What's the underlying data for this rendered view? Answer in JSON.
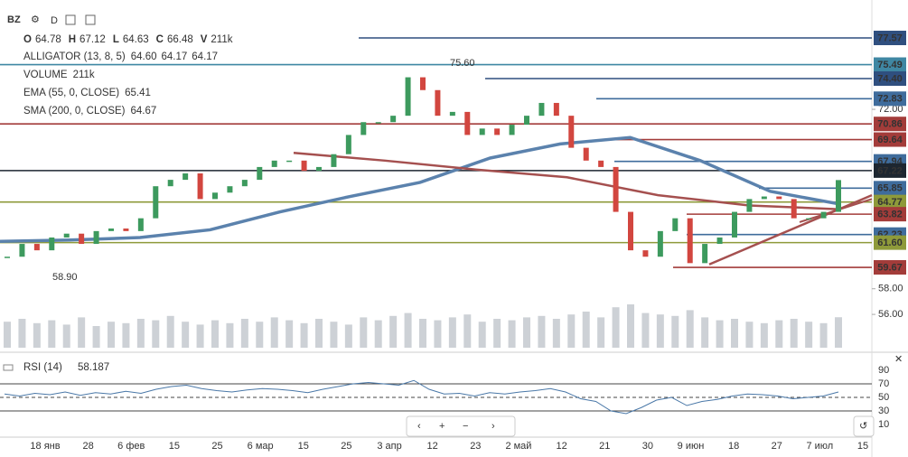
{
  "toolbar": {
    "symbol": "BZ",
    "interval": "D"
  },
  "legend": {
    "ohlc": [
      {
        "key": "O",
        "value": "64.78"
      },
      {
        "key": "H",
        "value": "67.12"
      },
      {
        "key": "L",
        "value": "64.63"
      },
      {
        "key": "C",
        "value": "66.48"
      },
      {
        "key": "V",
        "value": "211k"
      }
    ],
    "indicators": [
      {
        "name": "ALLIGATOR (13, 8, 5)",
        "values": [
          "64.60",
          "64.17",
          "64.17"
        ]
      },
      {
        "name": "VOLUME",
        "values": [
          "211k"
        ]
      },
      {
        "name": "EMA (55, 0, CLOSE)",
        "values": [
          "65.41"
        ]
      },
      {
        "name": "SMA (200, 0, CLOSE)",
        "values": [
          "64.67"
        ]
      }
    ]
  },
  "chart": {
    "ylim": [
      53.4,
      80.53
    ],
    "closes": [
      60.5,
      61.5,
      61,
      62,
      62.3,
      61.5,
      62.5,
      62.7,
      62.5,
      63.5,
      66,
      66.5,
      67,
      65,
      65.5,
      66,
      66.5,
      67.5,
      68,
      68,
      67.2,
      67.5,
      68.5,
      70,
      71,
      71,
      71.5,
      74.5,
      73.5,
      71.5,
      71.8,
      70,
      70.5,
      70,
      70.8,
      71.5,
      72.5,
      71.5,
      69,
      68,
      67.5,
      64,
      61,
      60.5,
      62.5,
      63.5,
      60,
      61.5,
      62,
      64,
      65,
      65.2,
      65,
      63.5,
      63.5,
      64,
      66.48
    ],
    "volume": [
      180,
      200,
      170,
      190,
      160,
      210,
      150,
      180,
      170,
      200,
      190,
      220,
      180,
      160,
      190,
      170,
      200,
      180,
      210,
      190,
      170,
      200,
      180,
      160,
      210,
      190,
      220,
      240,
      200,
      190,
      210,
      230,
      180,
      200,
      190,
      210,
      220,
      200,
      230,
      250,
      210,
      280,
      300,
      240,
      230,
      220,
      260,
      210,
      190,
      200,
      180,
      170,
      190,
      200,
      180,
      170,
      211
    ],
    "ema": [
      61.7,
      61.8,
      62,
      62.6,
      64,
      65.2,
      66.3,
      68.2,
      69.3,
      69.8,
      68,
      65.6,
      64.6
    ],
    "sma": [
      68.6,
      68,
      67.3,
      66.7,
      65.3,
      64.5,
      64.2
    ],
    "levels": [
      {
        "value": 77.57,
        "label": "77.57",
        "color": "#2f4f7f"
      },
      {
        "value": 75.49,
        "label": "75.49",
        "color": "#3f87a3"
      },
      {
        "value": 74.4,
        "label": "74.40",
        "color": "#2f4f7f"
      },
      {
        "value": 72.83,
        "label": "72.83",
        "color": "#3f6c9c"
      },
      {
        "value": 70.86,
        "label": "70.86",
        "color": "#a33c3a"
      },
      {
        "value": 69.64,
        "label": "69.64",
        "color": "#a33c3a"
      },
      {
        "value": 67.94,
        "label": "67.94",
        "color": "#3f6c9c"
      },
      {
        "value": 67.22,
        "label": "67.22",
        "color": "#1d2630"
      },
      {
        "value": 65.85,
        "label": "65.85",
        "color": "#3f6c9c"
      },
      {
        "value": 64.77,
        "label": "64.77",
        "color": "#8e9a3a"
      },
      {
        "value": 63.82,
        "label": "63.82",
        "color": "#a33c3a"
      },
      {
        "value": 62.23,
        "label": "62.23",
        "color": "#3f6c9c"
      },
      {
        "value": 61.6,
        "label": "61.60",
        "color": "#8e9a3a"
      },
      {
        "value": 59.67,
        "label": "59.67",
        "color": "#a33c3a"
      }
    ],
    "yticks": [
      {
        "value": 72,
        "label": "72.00"
      },
      {
        "value": 58,
        "label": "58.00"
      },
      {
        "value": 56,
        "label": "56.00"
      }
    ],
    "annotations": [
      {
        "value": 75.6,
        "label": "75.60"
      },
      {
        "value": 58.9,
        "label": "58.90"
      }
    ],
    "dates": [
      "18 янв",
      "28",
      "6 фев",
      "15",
      "25",
      "6 мар",
      "15",
      "25",
      "3 апр",
      "12",
      "23",
      "2 май",
      "12",
      "21",
      "30",
      "9 июн",
      "18",
      "27",
      "7 июл",
      "15"
    ]
  },
  "rsi": {
    "label": "RSI (14)",
    "value": "58.187",
    "ylim": [
      -3.3,
      107.3
    ],
    "ticks": [
      90,
      70,
      50,
      30,
      10
    ],
    "values": [
      55,
      52,
      56,
      54,
      58,
      53,
      57,
      55,
      59,
      56,
      62,
      66,
      68,
      63,
      60,
      58,
      61,
      63,
      62,
      60,
      57,
      62,
      66,
      70,
      72,
      70,
      68,
      75,
      62,
      55,
      56,
      52,
      57,
      55,
      58,
      60,
      63,
      58,
      48,
      44,
      30,
      26,
      35,
      46,
      50,
      38,
      44,
      47,
      52,
      55,
      54,
      52,
      48,
      50,
      52,
      58
    ]
  }
}
